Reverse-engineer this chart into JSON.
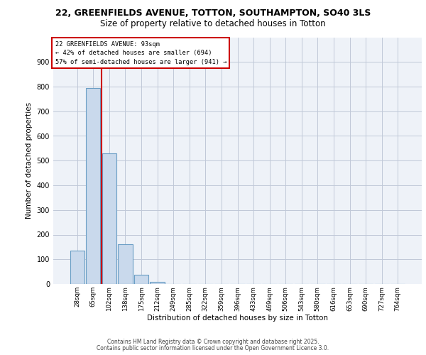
{
  "title_line1": "22, GREENFIELDS AVENUE, TOTTON, SOUTHAMPTON, SO40 3LS",
  "title_line2": "Size of property relative to detached houses in Totton",
  "xlabel": "Distribution of detached houses by size in Totton",
  "ylabel": "Number of detached properties",
  "categories": [
    "28sqm",
    "65sqm",
    "102sqm",
    "138sqm",
    "175sqm",
    "212sqm",
    "249sqm",
    "285sqm",
    "322sqm",
    "359sqm",
    "396sqm",
    "433sqm",
    "469sqm",
    "506sqm",
    "543sqm",
    "580sqm",
    "616sqm",
    "653sqm",
    "690sqm",
    "727sqm",
    "764sqm"
  ],
  "values": [
    135,
    795,
    530,
    160,
    37,
    10,
    0,
    0,
    0,
    0,
    0,
    0,
    0,
    0,
    0,
    0,
    0,
    0,
    0,
    0,
    0
  ],
  "bar_color": "#c9d9ec",
  "bar_edge_color": "#6a9ec5",
  "bar_edge_width": 0.8,
  "grid_color": "#c0c8d8",
  "background_color": "#eef2f8",
  "vline_color": "#cc0000",
  "annotation_text": "22 GREENFIELDS AVENUE: 93sqm\n← 42% of detached houses are smaller (694)\n57% of semi-detached houses are larger (941) →",
  "annotation_box_color": "#ffffff",
  "annotation_box_edge": "#cc0000",
  "ylim": [
    0,
    1000
  ],
  "yticks": [
    0,
    100,
    200,
    300,
    400,
    500,
    600,
    700,
    800,
    900,
    1000
  ],
  "footer_line1": "Contains HM Land Registry data © Crown copyright and database right 2025.",
  "footer_line2": "Contains public sector information licensed under the Open Government Licence 3.0.",
  "title_fontsize": 9,
  "subtitle_fontsize": 8.5,
  "footer_fontsize": 5.5
}
